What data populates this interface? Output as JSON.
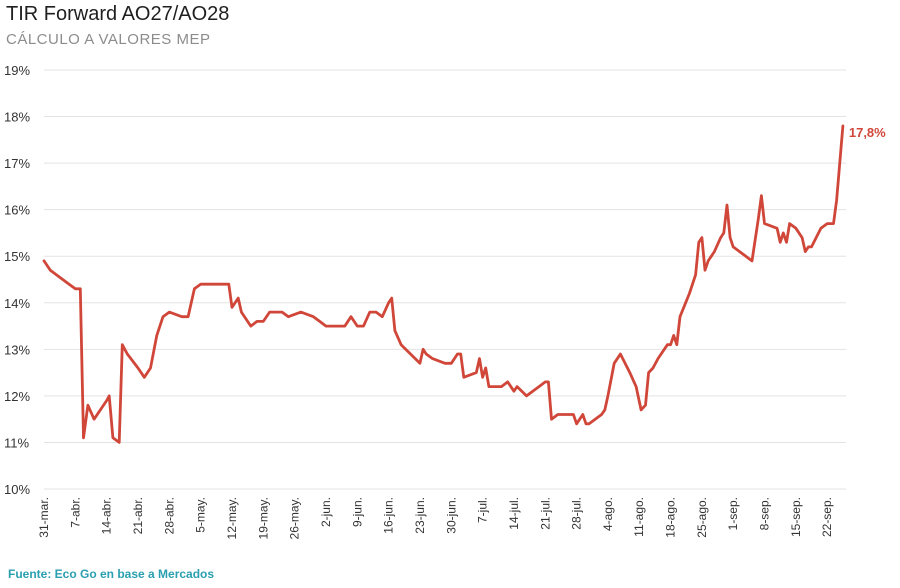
{
  "title": "TIR Forward AO27/AO28",
  "subtitle": "CÁLCULO A VALORES MEP",
  "source": "Fuente: Eco Go en base a Mercados",
  "colors": {
    "line": "#d0473a",
    "grid": "#e3e3e3",
    "source": "#2a9fb0"
  },
  "chart_data": {
    "type": "line",
    "title": "TIR Forward AO27/AO28",
    "subtitle": "CÁLCULO A VALORES MEP",
    "ylabel": "",
    "xlabel": "",
    "ylim": [
      10,
      19
    ],
    "yticks": [
      10,
      11,
      12,
      13,
      14,
      15,
      16,
      17,
      18,
      19
    ],
    "ytick_labels": [
      "10%",
      "11%",
      "12%",
      "13%",
      "14%",
      "15%",
      "16%",
      "17%",
      "18%",
      "19%"
    ],
    "x_tick_labels": [
      "31-mar.",
      "7-abr.",
      "14-abr.",
      "21-abr.",
      "28-abr.",
      "5-may.",
      "12-may.",
      "19-may.",
      "26-may.",
      "2-jun.",
      "9-jun.",
      "16-jun.",
      "23-jun.",
      "30-jun.",
      "7-jul.",
      "14-jul.",
      "21-jul.",
      "28-jul.",
      "4-ago.",
      "11-ago.",
      "18-ago.",
      "25-ago.",
      "1-sep.",
      "8-sep.",
      "15-sep.",
      "22-sep."
    ],
    "grid": true,
    "end_label": "17,8%",
    "series": [
      {
        "values": [
          [
            0,
            14.9
          ],
          [
            1,
            14.7
          ],
          [
            4,
            14.4
          ],
          [
            5,
            14.3
          ],
          [
            5.8,
            14.3
          ],
          [
            6.3,
            11.1
          ],
          [
            7,
            11.8
          ],
          [
            8,
            11.5
          ],
          [
            10,
            11.9
          ],
          [
            10.4,
            12.0
          ],
          [
            11,
            11.1
          ],
          [
            12,
            11.0
          ],
          [
            12.5,
            13.1
          ],
          [
            13.3,
            12.9
          ],
          [
            15,
            12.6
          ],
          [
            16,
            12.4
          ],
          [
            17,
            12.6
          ],
          [
            18,
            13.3
          ],
          [
            19,
            13.7
          ],
          [
            20,
            13.8
          ],
          [
            22,
            13.7
          ],
          [
            23,
            13.7
          ],
          [
            24,
            14.3
          ],
          [
            25,
            14.4
          ],
          [
            28,
            14.4
          ],
          [
            29.5,
            14.4
          ],
          [
            30,
            13.9
          ],
          [
            31,
            14.1
          ],
          [
            31.5,
            13.8
          ],
          [
            33,
            13.5
          ],
          [
            34,
            13.6
          ],
          [
            35,
            13.6
          ],
          [
            36,
            13.8
          ],
          [
            38,
            13.8
          ],
          [
            39,
            13.7
          ],
          [
            41,
            13.8
          ],
          [
            43,
            13.7
          ],
          [
            44,
            13.6
          ],
          [
            45,
            13.5
          ],
          [
            47,
            13.5
          ],
          [
            48,
            13.5
          ],
          [
            49,
            13.7
          ],
          [
            50,
            13.5
          ],
          [
            51,
            13.5
          ],
          [
            52,
            13.8
          ],
          [
            53,
            13.8
          ],
          [
            54,
            13.7
          ],
          [
            55,
            14.0
          ],
          [
            55.5,
            14.1
          ],
          [
            56,
            13.4
          ],
          [
            57,
            13.1
          ],
          [
            60,
            12.7
          ],
          [
            60.5,
            13.0
          ],
          [
            61,
            12.9
          ],
          [
            62,
            12.8
          ],
          [
            64,
            12.7
          ],
          [
            65,
            12.7
          ],
          [
            66,
            12.9
          ],
          [
            66.5,
            12.9
          ],
          [
            67,
            12.4
          ],
          [
            69,
            12.5
          ],
          [
            69.5,
            12.8
          ],
          [
            70,
            12.4
          ],
          [
            70.5,
            12.6
          ],
          [
            71,
            12.2
          ],
          [
            73,
            12.2
          ],
          [
            74,
            12.3
          ],
          [
            75,
            12.1
          ],
          [
            75.5,
            12.2
          ],
          [
            77,
            12.0
          ],
          [
            78,
            12.1
          ],
          [
            79,
            12.2
          ],
          [
            80,
            12.3
          ],
          [
            80.5,
            12.3
          ],
          [
            81,
            11.5
          ],
          [
            82,
            11.6
          ],
          [
            84,
            11.6
          ],
          [
            84.5,
            11.6
          ],
          [
            85,
            11.4
          ],
          [
            86,
            11.6
          ],
          [
            86.5,
            11.4
          ],
          [
            87,
            11.4
          ],
          [
            89,
            11.6
          ],
          [
            89.5,
            11.7
          ],
          [
            90,
            12.0
          ],
          [
            91,
            12.7
          ],
          [
            92,
            12.9
          ],
          [
            93.5,
            12.5
          ],
          [
            94.5,
            12.2
          ],
          [
            95.3,
            11.7
          ],
          [
            96,
            11.8
          ],
          [
            96.5,
            12.5
          ],
          [
            97.2,
            12.6
          ],
          [
            98,
            12.8
          ],
          [
            99.5,
            13.1
          ],
          [
            100,
            13.1
          ],
          [
            100.5,
            13.3
          ],
          [
            101,
            13.1
          ],
          [
            101.5,
            13.7
          ],
          [
            103,
            14.2
          ],
          [
            104,
            14.6
          ],
          [
            104.5,
            15.3
          ],
          [
            105,
            15.4
          ],
          [
            105.5,
            14.7
          ],
          [
            106,
            14.9
          ],
          [
            107,
            15.1
          ],
          [
            108,
            15.4
          ],
          [
            108.5,
            15.5
          ],
          [
            109,
            16.1
          ],
          [
            109.5,
            15.4
          ],
          [
            110,
            15.2
          ],
          [
            112,
            15.0
          ],
          [
            113,
            14.9
          ],
          [
            114,
            15.8
          ],
          [
            114.5,
            16.3
          ],
          [
            115,
            15.7
          ],
          [
            117,
            15.6
          ],
          [
            117.5,
            15.3
          ],
          [
            118,
            15.5
          ],
          [
            118.5,
            15.3
          ],
          [
            119,
            15.7
          ],
          [
            120,
            15.6
          ],
          [
            121,
            15.4
          ],
          [
            121.5,
            15.1
          ],
          [
            122,
            15.2
          ],
          [
            122.5,
            15.2
          ],
          [
            124,
            15.6
          ],
          [
            125,
            15.7
          ],
          [
            126,
            15.7
          ],
          [
            126.5,
            16.2
          ],
          [
            127.5,
            17.8
          ]
        ]
      }
    ]
  }
}
